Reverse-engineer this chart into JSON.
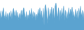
{
  "values": [
    55,
    80,
    50,
    75,
    90,
    65,
    55,
    78,
    52,
    72,
    50,
    75,
    52,
    80,
    55,
    78,
    88,
    70,
    58,
    82,
    54,
    76,
    50,
    72,
    55,
    82,
    58,
    80,
    90,
    72,
    52,
    78,
    50,
    68,
    55,
    82,
    60,
    88,
    56,
    78,
    52,
    75,
    50,
    70,
    58,
    85,
    62,
    90,
    58,
    80,
    45,
    88,
    35,
    95,
    100,
    68,
    40,
    90,
    50,
    85,
    60,
    92,
    55,
    88,
    42,
    95,
    105,
    72,
    55,
    90,
    48,
    82,
    55,
    88,
    60,
    95,
    50,
    82,
    45,
    78,
    55,
    90,
    60,
    85,
    70,
    92,
    55,
    78,
    50,
    85,
    58,
    80,
    42,
    88,
    65,
    95,
    58,
    82,
    50,
    78
  ],
  "line_color": "#5ba3d0",
  "fill_color": "#5ba3d0",
  "background_color": "#ffffff",
  "ylim_min": 20,
  "ylim_max": 115
}
